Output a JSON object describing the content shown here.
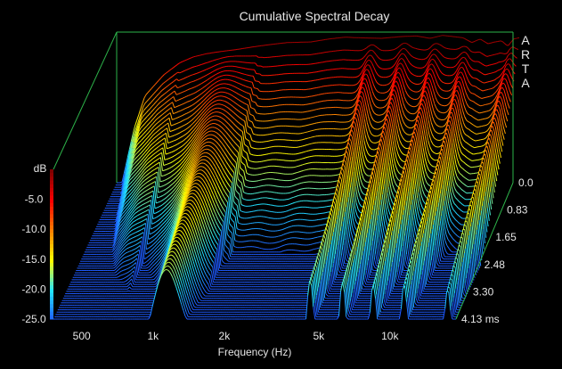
{
  "chart_data": {
    "type": "area",
    "subtype": "waterfall-3d",
    "title": "Cumulative Spectral Decay",
    "brand": "ARTA",
    "xlabel": "Frequency (Hz)",
    "ylabel": "dB",
    "zlabel_unit": "ms",
    "x_scale": "log",
    "x_ticks": [
      {
        "value": 500,
        "label": "500"
      },
      {
        "value": 1000,
        "label": "1k"
      },
      {
        "value": 2000,
        "label": "2k"
      },
      {
        "value": 5000,
        "label": "5k"
      },
      {
        "value": 10000,
        "label": "10k"
      }
    ],
    "xlim": [
      380,
      19000
    ],
    "y_ticks": [
      {
        "value": -5,
        "label": "-5.0"
      },
      {
        "value": -10,
        "label": "-10.0"
      },
      {
        "value": -15,
        "label": "-15.0"
      },
      {
        "value": -20,
        "label": "-20.0"
      },
      {
        "value": -25,
        "label": "-25.0"
      }
    ],
    "ylim": [
      -25,
      0
    ],
    "z_ticks": [
      {
        "value": 0.0,
        "label": "0.0"
      },
      {
        "value": 0.83,
        "label": "0.83"
      },
      {
        "value": 1.65,
        "label": "1.65"
      },
      {
        "value": 2.48,
        "label": "2.48"
      },
      {
        "value": 3.3,
        "label": "3.30"
      },
      {
        "value": 4.13,
        "label": "4.13 ms"
      }
    ],
    "zlim": [
      0,
      4.13
    ],
    "slice_count": 60,
    "initial_response": {
      "frequency": [
        400,
        450,
        500,
        600,
        700,
        800,
        900,
        1000,
        1200,
        1500,
        1800,
        2000,
        2500,
        3000,
        3500,
        4000,
        5000,
        6000,
        7000,
        8000,
        9000,
        10000,
        11000,
        12000,
        13000,
        14000,
        15000,
        16000,
        17000,
        18000,
        19000
      ],
      "level_db": [
        -25,
        -16,
        -10.5,
        -7,
        -5,
        -4,
        -3.5,
        -3.2,
        -2.8,
        -2.2,
        -1.8,
        -1.6,
        -1.5,
        -1.0,
        -0.7,
        -0.8,
        -0.9,
        -0.6,
        -0.5,
        -0.9,
        -0.4,
        -0.6,
        -0.8,
        -1.6,
        -1.0,
        -1.8,
        -1.5,
        -1.3,
        -2.2,
        -1.0,
        -0.8
      ]
    },
    "resonance_peaks_hz": [
      1150,
      4600,
      6300,
      8500,
      11500,
      17500
    ],
    "colorscale": [
      "#1e5aff",
      "#22e6ff",
      "#ffff00",
      "#ff8000",
      "#ff0000",
      "#800000"
    ],
    "frame_color": "#2db34a",
    "background": "#000000",
    "grid": false
  }
}
